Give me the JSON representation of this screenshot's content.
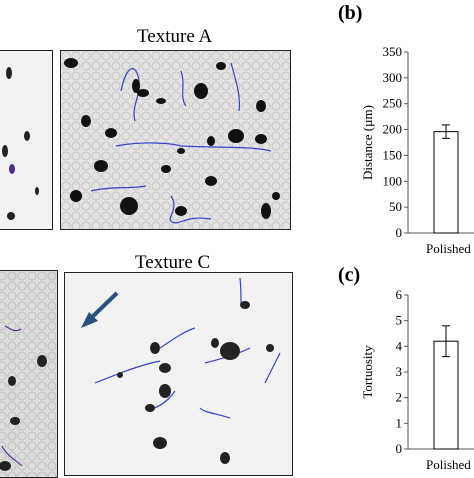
{
  "panels": {
    "texture_a": {
      "title": "Texture A"
    },
    "texture_c": {
      "title": "Texture C"
    }
  },
  "labels": {
    "b": "(b)",
    "c": "(c)"
  },
  "colors": {
    "track": "#3344cc",
    "arrow": "#2a4f7c",
    "bar_fill": "#ffffff",
    "axis": "#555555"
  },
  "chart_data": [
    {
      "type": "bar",
      "panel": "(b)",
      "categories": [
        "Polished"
      ],
      "values": [
        196
      ],
      "error": [
        13
      ],
      "ylabel": "Distance (µm)",
      "ylim": [
        0,
        350
      ],
      "yticks": [
        "0",
        "50",
        "100",
        "150",
        "200",
        "250",
        "300",
        "350"
      ],
      "grid": false
    },
    {
      "type": "bar",
      "panel": "(c)",
      "categories": [
        "Polished"
      ],
      "values": [
        4.2
      ],
      "error": [
        0.6
      ],
      "ylabel": "Tortuosity",
      "ylim": [
        0,
        6
      ],
      "yticks": [
        "0",
        "1",
        "2",
        "3",
        "4",
        "5",
        "6"
      ],
      "grid": false
    }
  ]
}
